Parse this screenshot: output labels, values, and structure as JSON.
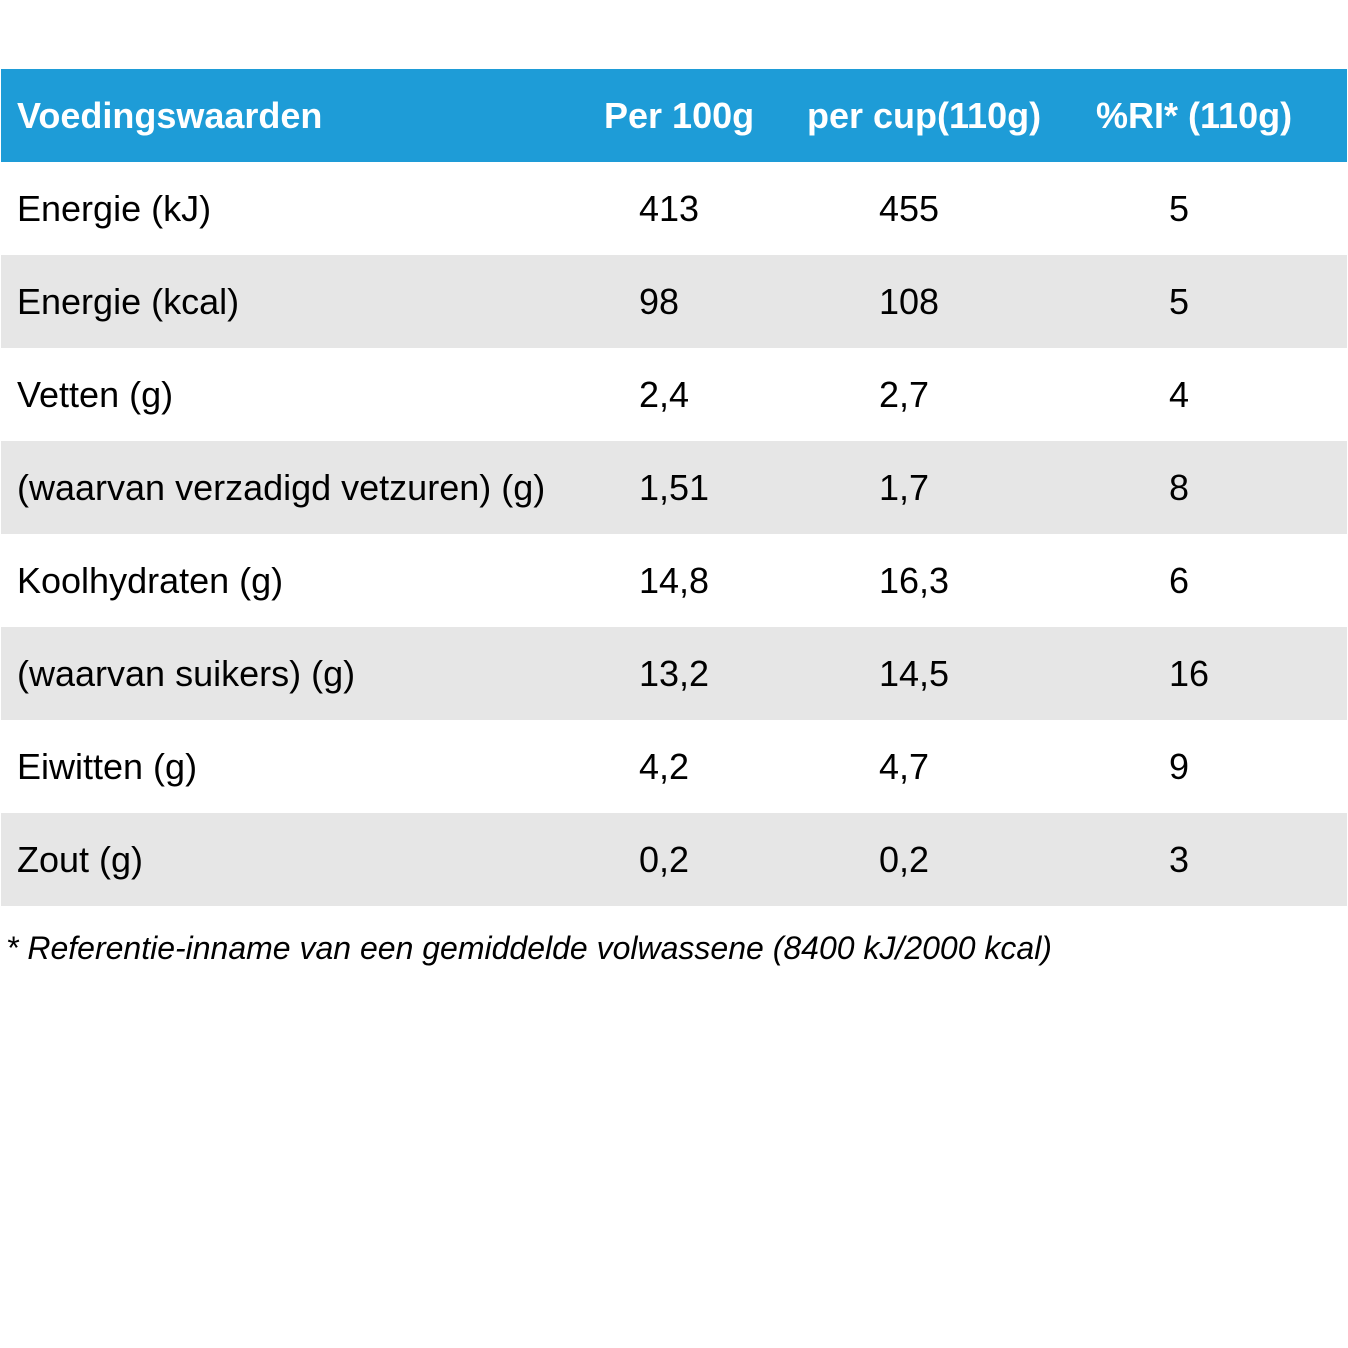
{
  "table": {
    "header": [
      "Voedingswaarden",
      "Per 100g",
      "per cup(110g)",
      "%RI* (110g)"
    ],
    "rows": [
      [
        "Energie (kJ)",
        "413",
        "455",
        "5"
      ],
      [
        "Energie (kcal)",
        "98",
        "108",
        "5"
      ],
      [
        "Vetten (g)",
        "2,4",
        "2,7",
        "4"
      ],
      [
        "(waarvan verzadigd vetzuren) (g)",
        "1,51",
        "1,7",
        "8"
      ],
      [
        "Koolhydraten (g)",
        "14,8",
        "16,3",
        "6"
      ],
      [
        "(waarvan suikers) (g)",
        "13,2",
        "14,5",
        "16"
      ],
      [
        "Eiwitten (g)",
        "4,2",
        "4,7",
        "9"
      ],
      [
        "Zout (g)",
        "0,2",
        "0,2",
        "3"
      ]
    ]
  },
  "footnote": "* Referentie-inname van een gemiddelde volwassene (8400 kJ/2000 kcal)",
  "colors": {
    "header_bg": "#1e9cd7",
    "header_text": "#ffffff",
    "shaded_row": "#e6e6e6",
    "plain_row": "#ffffff"
  }
}
